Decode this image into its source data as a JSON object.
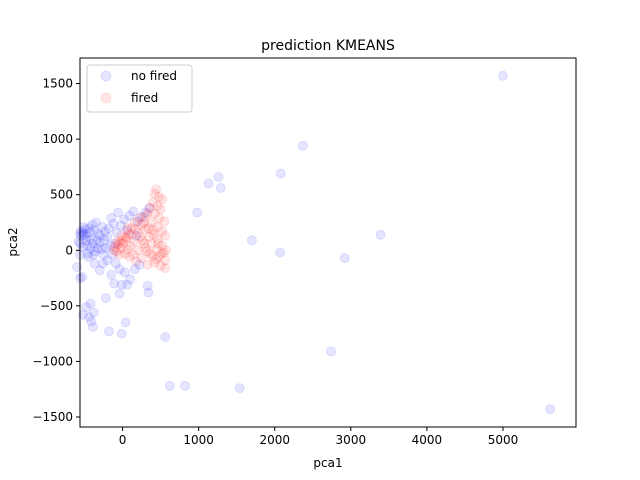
{
  "chart_data": {
    "type": "scatter",
    "title": "prediction KMEANS",
    "xlabel": "pca1",
    "ylabel": "pca2",
    "xlim": [
      -560,
      5960
    ],
    "ylim": [
      -1590,
      1730
    ],
    "xticks": [
      0,
      1000,
      2000,
      3000,
      4000,
      5000
    ],
    "yticks": [
      -1500,
      -1000,
      -500,
      0,
      500,
      1000,
      1500
    ],
    "grid": false,
    "legend_position": "top-left",
    "series": [
      {
        "name": "no fired",
        "color": "#0000ff",
        "opacity": 0.1,
        "points": [
          [
            5000,
            1570
          ],
          [
            5620,
            -1430
          ],
          [
            2370,
            940
          ],
          [
            2080,
            690
          ],
          [
            1260,
            660
          ],
          [
            1130,
            600
          ],
          [
            1290,
            560
          ],
          [
            980,
            340
          ],
          [
            1700,
            90
          ],
          [
            2070,
            -20
          ],
          [
            3390,
            140
          ],
          [
            2920,
            -70
          ],
          [
            2740,
            -910
          ],
          [
            1540,
            -1240
          ],
          [
            620,
            -1220
          ],
          [
            820,
            -1220
          ],
          [
            560,
            -780
          ],
          [
            40,
            -650
          ],
          [
            -10,
            -750
          ],
          [
            -180,
            -730
          ],
          [
            -420,
            -480
          ],
          [
            -480,
            -510
          ],
          [
            -520,
            -580
          ],
          [
            -440,
            -600
          ],
          [
            -380,
            -560
          ],
          [
            -390,
            -690
          ],
          [
            -410,
            -640
          ],
          [
            -560,
            -250
          ],
          [
            -530,
            -240
          ],
          [
            -600,
            -150
          ],
          [
            -220,
            -430
          ],
          [
            -110,
            -300
          ],
          [
            -10,
            -310
          ],
          [
            60,
            -310
          ],
          [
            330,
            -320
          ],
          [
            340,
            -380
          ],
          [
            -40,
            -390
          ],
          [
            -150,
            -220
          ],
          [
            -300,
            -180
          ],
          [
            -370,
            -120
          ],
          [
            -450,
            -60
          ],
          [
            -560,
            150
          ],
          [
            -550,
            170
          ],
          [
            -520,
            160
          ],
          [
            -540,
            130
          ],
          [
            -500,
            140
          ],
          [
            -480,
            90
          ],
          [
            -560,
            60
          ],
          [
            -520,
            30
          ],
          [
            -460,
            40
          ],
          [
            -420,
            100
          ],
          [
            -440,
            200
          ],
          [
            -400,
            230
          ],
          [
            -380,
            180
          ],
          [
            -350,
            250
          ],
          [
            -320,
            150
          ],
          [
            -300,
            70
          ],
          [
            -280,
            10
          ],
          [
            -250,
            -40
          ],
          [
            -220,
            20
          ],
          [
            -200,
            120
          ],
          [
            -180,
            200
          ],
          [
            -150,
            290
          ],
          [
            -120,
            240
          ],
          [
            -80,
            160
          ],
          [
            -60,
            340
          ],
          [
            -20,
            220
          ],
          [
            20,
            280
          ],
          [
            60,
            180
          ],
          [
            90,
            310
          ],
          [
            140,
            350
          ],
          [
            200,
            260
          ],
          [
            250,
            300
          ],
          [
            300,
            340
          ],
          [
            350,
            380
          ],
          [
            180,
            130
          ],
          [
            -100,
            60
          ],
          [
            -130,
            -40
          ],
          [
            -90,
            -120
          ],
          [
            -40,
            -170
          ],
          [
            30,
            -200
          ],
          [
            100,
            -260
          ],
          [
            160,
            -170
          ],
          [
            220,
            -130
          ],
          [
            -330,
            20
          ],
          [
            -360,
            -10
          ],
          [
            -390,
            60
          ],
          [
            -470,
            120
          ],
          [
            -500,
            190
          ],
          [
            -560,
            -40
          ],
          [
            -580,
            80
          ],
          [
            -510,
            210
          ],
          [
            -430,
            160
          ],
          [
            -270,
            210
          ],
          [
            -240,
            90
          ],
          [
            -200,
            -90
          ],
          [
            -160,
            40
          ],
          [
            -230,
            170
          ],
          [
            -300,
            130
          ],
          [
            -340,
            90
          ],
          [
            -260,
            -120
          ],
          [
            -380,
            -40
          ],
          [
            -420,
            20
          ],
          [
            -460,
            -30
          ]
        ]
      },
      {
        "name": "fired",
        "color": "#ff0000",
        "opacity": 0.1,
        "points": [
          [
            440,
            550
          ],
          [
            420,
            510
          ],
          [
            480,
            480
          ],
          [
            520,
            460
          ],
          [
            400,
            430
          ],
          [
            460,
            400
          ],
          [
            360,
            380
          ],
          [
            500,
            370
          ],
          [
            330,
            330
          ],
          [
            420,
            330
          ],
          [
            290,
            300
          ],
          [
            480,
            290
          ],
          [
            550,
            260
          ],
          [
            380,
            250
          ],
          [
            250,
            230
          ],
          [
            460,
            210
          ],
          [
            300,
            190
          ],
          [
            400,
            180
          ],
          [
            520,
            170
          ],
          [
            200,
            160
          ],
          [
            560,
            130
          ],
          [
            350,
            120
          ],
          [
            460,
            100
          ],
          [
            260,
            90
          ],
          [
            150,
            80
          ],
          [
            380,
            60
          ],
          [
            520,
            40
          ],
          [
            100,
            40
          ],
          [
            300,
            20
          ],
          [
            450,
            10
          ],
          [
            200,
            0
          ],
          [
            540,
            -20
          ],
          [
            60,
            10
          ],
          [
            360,
            -30
          ],
          [
            140,
            -40
          ],
          [
            480,
            -60
          ],
          [
            250,
            -70
          ],
          [
            560,
            -90
          ],
          [
            420,
            -110
          ],
          [
            330,
            -130
          ],
          [
            500,
            -140
          ],
          [
            560,
            -160
          ],
          [
            180,
            -100
          ],
          [
            90,
            -60
          ],
          [
            30,
            -30
          ],
          [
            -20,
            20
          ],
          [
            -60,
            50
          ],
          [
            -100,
            30
          ],
          [
            -80,
            -10
          ],
          [
            -40,
            -40
          ],
          [
            10,
            60
          ],
          [
            50,
            110
          ],
          [
            110,
            140
          ],
          [
            170,
            190
          ],
          [
            230,
            120
          ],
          [
            280,
            60
          ],
          [
            320,
            -10
          ],
          [
            390,
            -50
          ],
          [
            440,
            -80
          ],
          [
            510,
            -30
          ],
          [
            570,
            0
          ],
          [
            470,
            60
          ],
          [
            410,
            140
          ],
          [
            340,
            200
          ],
          [
            280,
            250
          ],
          [
            220,
            290
          ],
          [
            160,
            250
          ],
          [
            120,
            200
          ],
          [
            80,
            150
          ],
          [
            40,
            120
          ],
          [
            0,
            90
          ],
          [
            -30,
            70
          ],
          [
            -110,
            0
          ],
          [
            -70,
            80
          ],
          [
            -20,
            130
          ],
          [
            60,
            200
          ]
        ]
      }
    ]
  }
}
